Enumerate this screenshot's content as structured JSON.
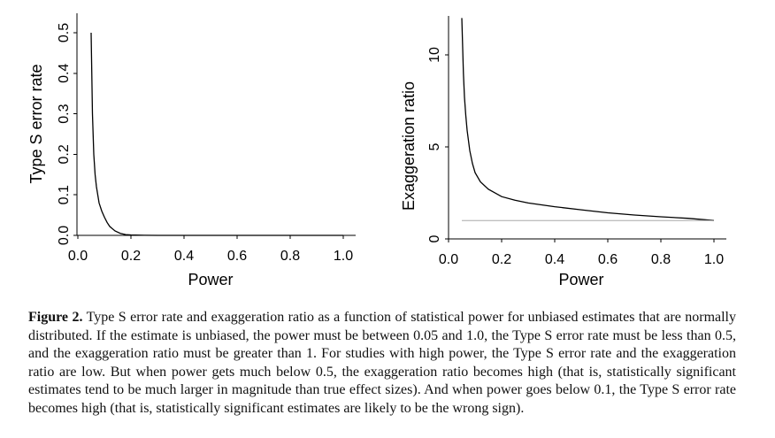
{
  "chart_data": [
    {
      "type": "line",
      "xlabel": "Power",
      "ylabel": "Type S error rate",
      "xlim": [
        0,
        1.05
      ],
      "ylim": [
        0,
        0.55
      ],
      "xticks": [
        "0.0",
        "0.2",
        "0.4",
        "0.6",
        "0.8",
        "1.0"
      ],
      "yticks": [
        "0.0",
        "0.1",
        "0.2",
        "0.3",
        "0.4",
        "0.5"
      ],
      "grid": false,
      "series": [
        {
          "x": [
            0.05,
            0.055,
            0.06,
            0.065,
            0.07,
            0.08,
            0.09,
            0.1,
            0.11,
            0.12,
            0.14,
            0.16,
            0.18,
            0.2,
            0.25,
            0.3,
            0.4,
            0.5,
            0.6,
            0.7,
            0.8,
            0.9,
            1.0
          ],
          "y": [
            0.5,
            0.3,
            0.2,
            0.15,
            0.12,
            0.08,
            0.06,
            0.045,
            0.032,
            0.022,
            0.011,
            0.005,
            0.002,
            0.001,
            0.0002,
            0,
            0,
            0,
            0,
            0,
            0,
            0,
            0
          ]
        }
      ]
    },
    {
      "type": "line",
      "xlabel": "Power",
      "ylabel": "Exaggeration ratio",
      "xlim": [
        0,
        1.05
      ],
      "ylim": [
        0,
        12
      ],
      "xticks": [
        "0.0",
        "0.2",
        "0.4",
        "0.6",
        "0.8",
        "1.0"
      ],
      "yticks": [
        "0",
        "5",
        "10"
      ],
      "grid": false,
      "series": [
        {
          "x": [
            0.05,
            0.053,
            0.056,
            0.06,
            0.065,
            0.07,
            0.08,
            0.09,
            0.1,
            0.12,
            0.15,
            0.2,
            0.25,
            0.3,
            0.4,
            0.5,
            0.6,
            0.7,
            0.8,
            0.9,
            1.0
          ],
          "y": [
            12.0,
            10.5,
            9.0,
            7.7,
            6.7,
            5.9,
            4.8,
            4.1,
            3.6,
            3.1,
            2.7,
            2.3,
            2.1,
            1.95,
            1.75,
            1.58,
            1.42,
            1.3,
            1.2,
            1.12,
            1.0
          ]
        },
        {
          "x": [
            0.05,
            1.0
          ],
          "y": [
            1,
            1
          ]
        }
      ]
    }
  ],
  "caption": {
    "label": "Figure 2.",
    "text": " Type S error rate and exaggeration ratio as a function of statistical power for unbiased estimates that are normally distributed. If the estimate is unbiased, the power must be between 0.05 and 1.0, the Type S error rate must be less than 0.5, and the exaggeration ratio must be greater than 1. For studies with high power, the Type S error rate and the exaggeration ratio are low. But when power gets much below 0.5, the exaggeration ratio becomes high (that is, statistically significant estimates tend to be much larger in magnitude than true effect sizes). And when power goes below 0.1, the Type S error rate becomes high (that is, statistically significant estimates are likely to be the wrong sign)."
  }
}
